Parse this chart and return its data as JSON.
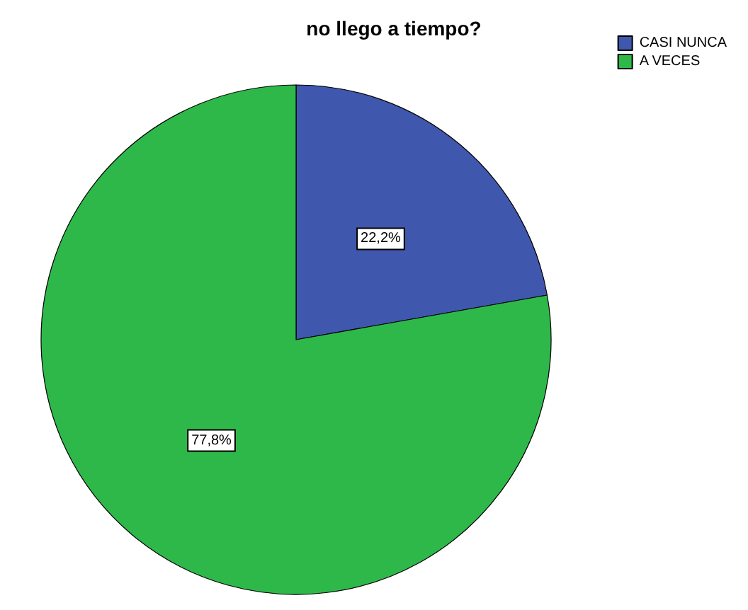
{
  "chart_data": {
    "type": "pie",
    "title": "no llego a tiempo?",
    "categories": [
      "CASI NUNCA",
      "A VECES"
    ],
    "values": [
      22.2,
      77.8
    ],
    "colors": [
      "#3f58ad",
      "#2fb84a"
    ],
    "value_labels": [
      "22,2%",
      "77,8%"
    ],
    "legend": "top right"
  }
}
